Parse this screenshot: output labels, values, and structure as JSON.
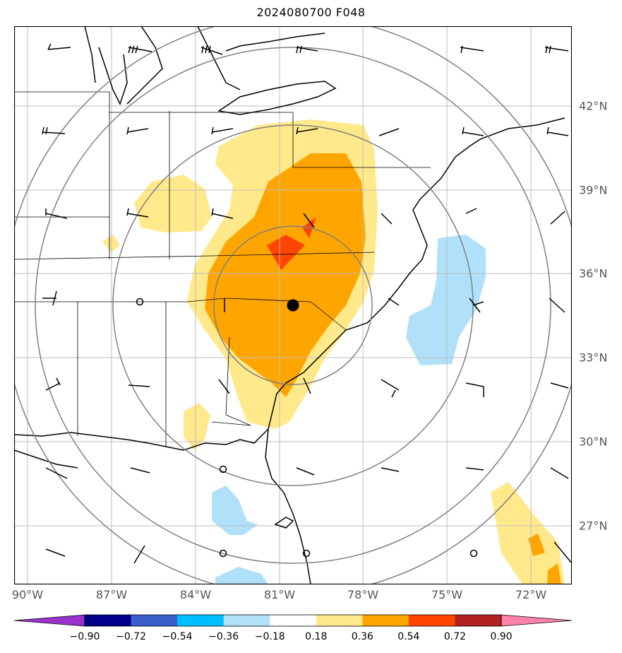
{
  "title": "2024080700 F048",
  "lon_labels": [
    "90°W",
    "87°W",
    "84°W",
    "81°W",
    "78°W",
    "75°W",
    "72°W"
  ],
  "lat_labels": [
    "42°N",
    "39°N",
    "36°N",
    "33°N",
    "30°N",
    "27°N"
  ],
  "colorbar": {
    "labels": [
      "−0.90",
      "−0.72",
      "−0.54",
      "−0.36",
      "−0.18",
      "0.18",
      "0.36",
      "0.54",
      "0.72",
      "0.90"
    ],
    "colors": [
      "#9932cc",
      "#00008b",
      "#3a5fcd",
      "#00bfff",
      "#b0e0fa",
      "#ffffff",
      "#ffe98a",
      "#ffa500",
      "#ff4500",
      "#b22222",
      "#ff82ab"
    ]
  },
  "colors": {
    "light_yellow": "#ffe98a",
    "orange": "#ffa500",
    "red_orange": "#ff4500",
    "light_blue": "#b0e0fa",
    "grid": "#bdbdbd",
    "range_rings": "#808080"
  },
  "center_marker": "filled-circle"
}
